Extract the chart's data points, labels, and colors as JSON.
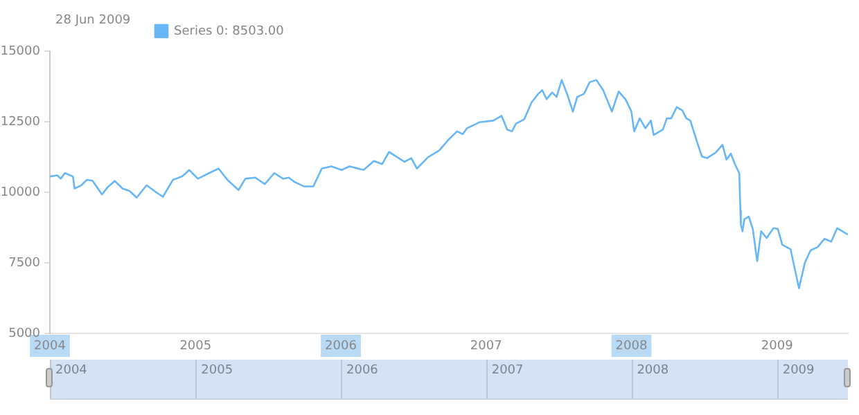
{
  "chart_data": {
    "type": "line",
    "annotations": [
      "28 Jun 2009"
    ],
    "legend": "top left",
    "grid": false,
    "marker": "none",
    "ylim": [
      5000,
      15000
    ],
    "yticks": [
      5000,
      7500,
      10000,
      12500,
      15000
    ],
    "xlim": [
      "2004-01-01",
      "2009-06-28"
    ],
    "xticks": [
      {
        "value": "2004-01-01",
        "label": "2004"
      },
      {
        "value": "2005-01-01",
        "label": "2005"
      },
      {
        "value": "2006-01-01",
        "label": "2006"
      },
      {
        "value": "2007-01-01",
        "label": "2007"
      },
      {
        "value": "2008-01-01",
        "label": "2008"
      },
      {
        "value": "2009-01-01",
        "label": "2009"
      }
    ],
    "x": [
      "2004-01-01",
      "2004-01-20",
      "2004-01-28",
      "2004-02-08",
      "2004-02-28",
      "2004-03-03",
      "2004-03-20",
      "2004-04-03",
      "2004-04-17",
      "2004-04-27",
      "2004-05-11",
      "2004-05-25",
      "2004-06-12",
      "2004-07-02",
      "2004-07-19",
      "2004-08-06",
      "2004-08-31",
      "2004-09-24",
      "2004-10-11",
      "2004-11-05",
      "2004-11-29",
      "2004-12-16",
      "2005-01-07",
      "2005-02-11",
      "2005-02-28",
      "2005-03-22",
      "2005-04-19",
      "2005-05-06",
      "2005-05-31",
      "2005-06-24",
      "2005-07-18",
      "2005-08-09",
      "2005-08-23",
      "2005-09-06",
      "2005-09-30",
      "2005-10-24",
      "2005-11-14",
      "2005-12-08",
      "2006-01-03",
      "2006-01-23",
      "2006-02-27",
      "2006-03-25",
      "2006-04-15",
      "2006-05-02",
      "2006-05-23",
      "2006-06-10",
      "2006-06-27",
      "2006-07-11",
      "2006-08-08",
      "2006-09-05",
      "2006-09-29",
      "2006-10-20",
      "2006-11-03",
      "2006-11-14",
      "2006-12-15",
      "2007-01-19",
      "2007-02-09",
      "2007-02-23",
      "2007-03-07",
      "2007-03-17",
      "2007-04-07",
      "2007-04-25",
      "2007-05-12",
      "2007-05-22",
      "2007-06-02",
      "2007-06-16",
      "2007-06-27",
      "2007-07-10",
      "2007-07-24",
      "2007-08-07",
      "2007-08-18",
      "2007-09-04",
      "2007-09-18",
      "2007-10-05",
      "2007-10-22",
      "2007-11-13",
      "2007-11-30",
      "2007-12-17",
      "2008-01-01",
      "2008-01-08",
      "2008-01-22",
      "2008-02-05",
      "2008-02-19",
      "2008-02-26",
      "2008-03-20",
      "2008-03-30",
      "2008-04-10",
      "2008-04-24",
      "2008-05-08",
      "2008-05-18",
      "2008-05-28",
      "2008-06-12",
      "2008-06-26",
      "2008-07-09",
      "2008-07-30",
      "2008-08-17",
      "2008-08-27",
      "2008-09-07",
      "2008-09-17",
      "2008-09-28",
      "2008-10-01",
      "2008-10-02",
      "2008-10-06",
      "2008-10-11",
      "2008-10-22",
      "2008-11-01",
      "2008-11-12",
      "2008-11-22",
      "2008-12-06",
      "2008-12-23",
      "2009-01-03",
      "2009-01-14",
      "2009-02-04",
      "2009-02-25",
      "2009-03-12",
      "2009-03-26",
      "2009-04-13",
      "2009-04-30",
      "2009-05-17",
      "2009-06-01",
      "2009-06-28"
    ],
    "series": [
      {
        "name": "Series 0: 8503.00",
        "color": "#67b7f7",
        "values": [
          10560,
          10600,
          10480,
          10680,
          10560,
          10130,
          10250,
          10440,
          10410,
          10210,
          9920,
          10180,
          10400,
          10130,
          10050,
          9810,
          10250,
          10000,
          9840,
          10440,
          10570,
          10790,
          10480,
          10730,
          10840,
          10440,
          10080,
          10480,
          10520,
          10290,
          10680,
          10480,
          10520,
          10370,
          10210,
          10210,
          10840,
          10920,
          10790,
          10920,
          10790,
          11110,
          11000,
          11430,
          11240,
          11080,
          11210,
          10840,
          11240,
          11480,
          11870,
          12160,
          12060,
          12270,
          12480,
          12540,
          12710,
          12220,
          12160,
          12430,
          12590,
          13180,
          13490,
          13620,
          13300,
          13540,
          13380,
          13980,
          13460,
          12860,
          13380,
          13490,
          13900,
          13980,
          13620,
          12860,
          13570,
          13300,
          12860,
          12160,
          12620,
          12270,
          12540,
          12030,
          12220,
          12620,
          12620,
          13020,
          12900,
          12620,
          12540,
          11870,
          11270,
          11210,
          11400,
          11680,
          11160,
          11370,
          11000,
          10680,
          9330,
          8860,
          8620,
          9050,
          9140,
          8700,
          7560,
          8620,
          8380,
          8730,
          8700,
          8140,
          7980,
          6600,
          7510,
          7940,
          8060,
          8350,
          8250,
          8730,
          8500
        ]
      }
    ]
  }
}
